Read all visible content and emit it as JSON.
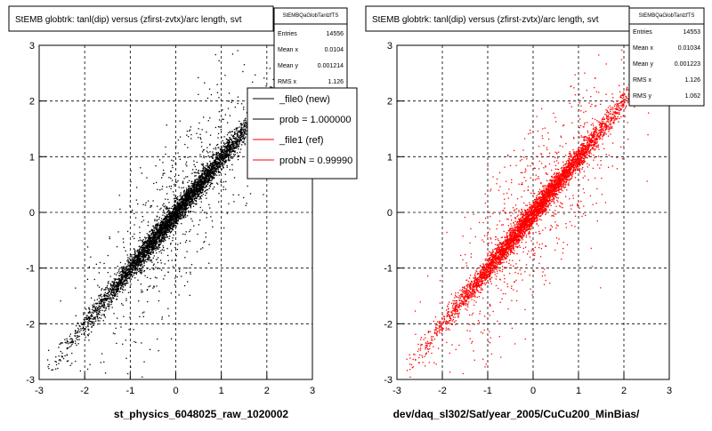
{
  "colors": {
    "left_points": "#000000",
    "right_points": "#ff0000",
    "frame": "#000000",
    "grid": "#000000"
  },
  "chart_data": [
    {
      "type": "scatter",
      "title": "StEMB globtrk: tanl(dip) versus (zfirst-zvtx)/arc length, svt",
      "xlabel": "st_physics_6048025_raw_1020002",
      "ylabel": "",
      "xlim": [
        -3,
        3
      ],
      "ylim": [
        -3,
        3
      ],
      "xticks": [
        "-3",
        "-2",
        "-1",
        "0",
        "1",
        "2",
        "3"
      ],
      "yticks": [
        "-3",
        "-2",
        "-1",
        "0",
        "1",
        "2",
        "3"
      ],
      "grid": true,
      "point_color": "#000000",
      "trend": {
        "slope": 1.0,
        "intercept": 0.0
      },
      "stats": {
        "name": "StEMBQaGlobTanlzfTS",
        "entries_label": "Entries",
        "entries": "14556",
        "mean_label": "Mean x",
        "mean": "0.0104",
        "meany_label": "Mean y",
        "meany": "0.001214",
        "rms_label": "RMS x",
        "rms": "1.126"
      },
      "legend": {
        "placement": "top-right",
        "entries": [
          {
            "label": "_file0 (new)",
            "color": "#000000"
          },
          {
            "label": "prob = 1.000000",
            "color": "#000000"
          },
          {
            "label": "_file1 (ref)",
            "color": "#ff0000"
          },
          {
            "label": "probN = 0.99990",
            "color": "#ff0000"
          }
        ]
      }
    },
    {
      "type": "scatter",
      "title": "StEMB globtrk: tanl(dip) versus (zfirst-zvtx)/arc length, svt",
      "xlabel": "dev/daq_sl302/Sat/year_2005/CuCu200_MinBias/",
      "ylabel": "",
      "xlim": [
        -3,
        3
      ],
      "ylim": [
        -3,
        3
      ],
      "xticks": [
        "-3",
        "-2",
        "-1",
        "0",
        "1",
        "2",
        "3"
      ],
      "yticks": [
        "-3",
        "-2",
        "-1",
        "0",
        "1",
        "2",
        "3"
      ],
      "grid": true,
      "point_color": "#ff0000",
      "trend": {
        "slope": 1.0,
        "intercept": 0.0
      },
      "stats": {
        "name": "StEMBQaGlobTanlzfTS",
        "entries_label": "Entries",
        "entries": "14553",
        "mean_label": "Mean x",
        "mean": "0.01034",
        "meany_label": "Mean y",
        "meany": "0.001223",
        "rms_label": "RMS x",
        "rms": "1.126",
        "rmsy_label": "RMS y",
        "rmsy": "1.062"
      }
    }
  ]
}
